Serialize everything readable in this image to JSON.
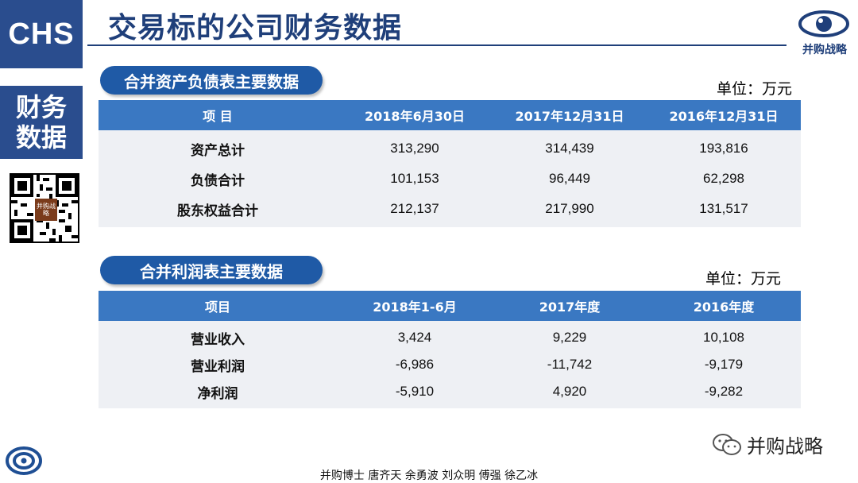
{
  "brand": {
    "chs": "CHS",
    "side_line1": "财务",
    "side_line2": "数据",
    "qr_badge": "并购战略",
    "logo_text": "并购战略"
  },
  "title": "交易标的公司财务数据",
  "balance": {
    "label": "合并资产负债表主要数据",
    "unit": "单位：万元",
    "headers": [
      "项 目",
      "2018年6月30日",
      "2017年12月31日",
      "2016年12月31日"
    ],
    "rows": [
      {
        "item": "资产总计",
        "v1": "313,290",
        "v2": "314,439",
        "v3": "193,816"
      },
      {
        "item": "负债合计",
        "v1": "101,153",
        "v2": "96,449",
        "v3": "62,298"
      },
      {
        "item": "股东权益合计",
        "v1": "212,137",
        "v2": "217,990",
        "v3": "131,517"
      }
    ]
  },
  "income": {
    "label": "合并利润表主要数据",
    "unit": "单位：万元",
    "headers": [
      "项目",
      "2018年1-6月",
      "2017年度",
      "2016年度"
    ],
    "rows": [
      {
        "item": "营业收入",
        "v1": "3,424",
        "v2": "9,229",
        "v3": "10,108"
      },
      {
        "item": "营业利润",
        "v1": "-6,986",
        "v2": "-11,742",
        "v3": "-9,179"
      },
      {
        "item": "净利润",
        "v1": "-5,910",
        "v2": "4,920",
        "v3": "-9,282"
      }
    ]
  },
  "wechat_label": "并购战略",
  "footer": "并购博士 唐齐天 余勇波 刘众明 傅强 徐乙冰",
  "colors": {
    "navy": "#2a4d8e",
    "pill": "#1f5aa6",
    "header": "#3a78c2",
    "row_bg": "#eef0f4"
  },
  "icons": [
    "eye-logo-icon",
    "qr-code-icon",
    "brand-swirl-icon",
    "wechat-icon"
  ]
}
